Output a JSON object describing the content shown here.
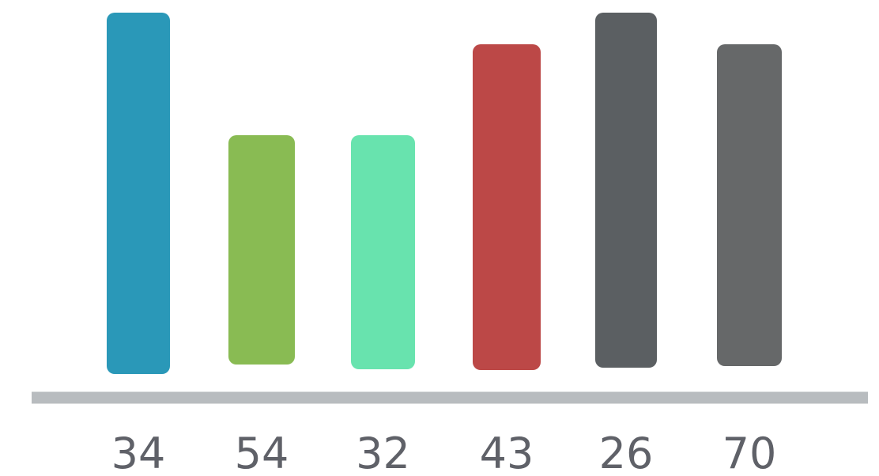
{
  "chart_data": {
    "type": "bar",
    "categories": [
      "34",
      "54",
      "32",
      "43",
      "26",
      "70"
    ],
    "values": [
      34,
      54,
      32,
      43,
      26,
      70
    ],
    "colors": [
      "#2a98b8",
      "#89bb53",
      "#68e3ae",
      "#bc4847",
      "#5b5f62",
      "#666869"
    ],
    "axis_color": "#b8bcbf",
    "label_color": "#5f6168"
  }
}
